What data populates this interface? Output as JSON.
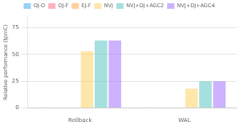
{
  "chart_data": {
    "type": "bar",
    "categories": [
      "Rollback",
      "WAL"
    ],
    "series": [
      {
        "name": "OJ-O",
        "values": [
          0.3,
          0.3
        ]
      },
      {
        "name": "OJ-F",
        "values": [
          0.3,
          0.3
        ]
      },
      {
        "name": "EJ-F",
        "values": [
          0.3,
          0.3
        ]
      },
      {
        "name": "NVJ",
        "values": [
          53,
          18
        ]
      },
      {
        "name": "NVJ+DJ+AGC2",
        "values": [
          63,
          25
        ]
      },
      {
        "name": "NVJ+DJ+AGC4",
        "values": [
          63,
          25
        ]
      }
    ],
    "ylabel": "Relative performance (tpmC)",
    "ylim": [
      0,
      85
    ],
    "yticks": [
      0,
      25,
      50,
      75
    ],
    "grid": true,
    "legend": "top"
  }
}
